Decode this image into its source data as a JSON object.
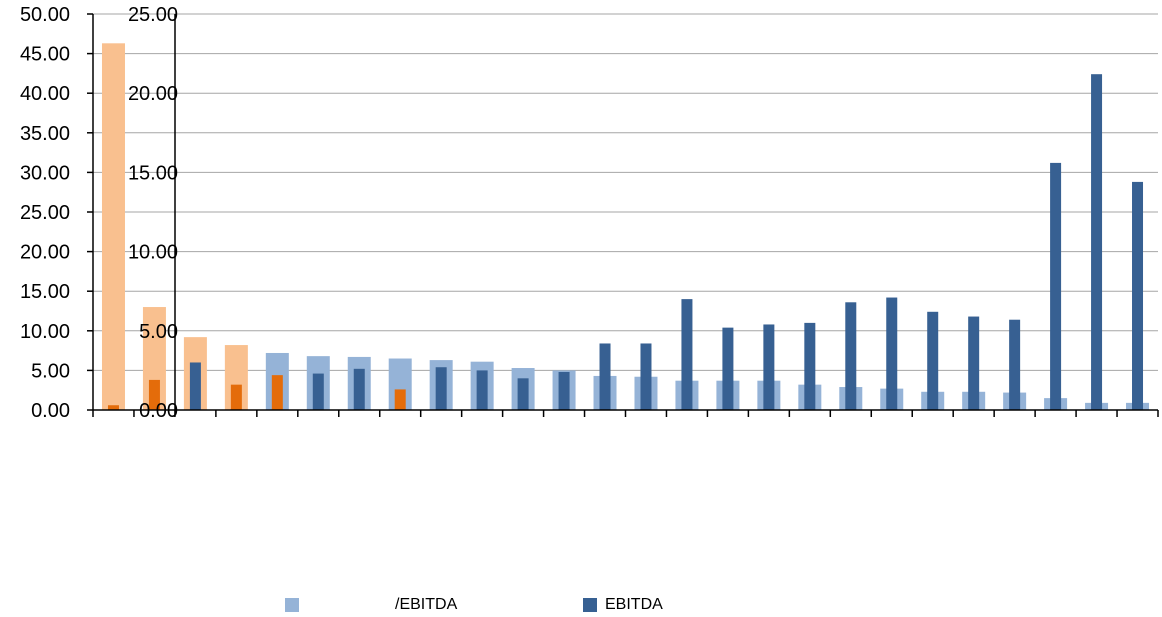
{
  "chart_data": {
    "type": "bar",
    "left_axis": {
      "ylim": [
        0,
        50
      ],
      "ticks": [
        "0.00",
        "5.00",
        "10.00",
        "15.00",
        "20.00",
        "25.00",
        "30.00",
        "35.00",
        "40.00",
        "45.00",
        "50.00"
      ]
    },
    "right_axis": {
      "ylim": [
        0,
        25
      ],
      "ticks": [
        "0.00",
        "5.00",
        "10.00",
        "15.00",
        "20.00",
        "25.00"
      ]
    },
    "categories_count": 26,
    "series": [
      {
        "name": "/EBITDA",
        "axis": "left",
        "values": [
          46.3,
          13.0,
          9.2,
          8.2,
          7.2,
          6.8,
          6.7,
          6.5,
          6.3,
          6.1,
          5.3,
          5.0,
          4.3,
          4.2,
          3.7,
          3.7,
          3.7,
          3.2,
          2.9,
          2.7,
          2.3,
          2.3,
          2.2,
          1.5,
          0.9,
          0.9
        ],
        "colors": [
          "#f9c08f",
          "#f9c08f",
          "#f9c08f",
          "#f9c08f",
          "#95b3d7",
          "#95b3d7",
          "#95b3d7",
          "#95b3d7",
          "#95b3d7",
          "#95b3d7",
          "#95b3d7",
          "#95b3d7",
          "#95b3d7",
          "#95b3d7",
          "#95b3d7",
          "#95b3d7",
          "#95b3d7",
          "#95b3d7",
          "#95b3d7",
          "#95b3d7",
          "#95b3d7",
          "#95b3d7",
          "#95b3d7",
          "#95b3d7",
          "#95b3d7",
          "#95b3d7"
        ]
      },
      {
        "name": "EBITDA",
        "axis": "right",
        "values": [
          0.3,
          1.9,
          3.0,
          1.6,
          2.2,
          2.3,
          2.6,
          1.3,
          2.7,
          2.5,
          2.0,
          2.4,
          4.2,
          4.2,
          7.0,
          5.2,
          5.4,
          5.5,
          6.8,
          7.1,
          6.2,
          5.9,
          5.7,
          15.6,
          21.2,
          14.4
        ],
        "colors": [
          "#e46c0a",
          "#e46c0a",
          "#376092",
          "#e46c0a",
          "#e46c0a",
          "#376092",
          "#376092",
          "#e46c0a",
          "#376092",
          "#376092",
          "#376092",
          "#376092",
          "#376092",
          "#376092",
          "#376092",
          "#376092",
          "#376092",
          "#376092",
          "#376092",
          "#376092",
          "#376092",
          "#376092",
          "#376092",
          "#376092",
          "#376092",
          "#376092"
        ]
      }
    ],
    "legend": [
      "/EBITDA",
      "EBITDA"
    ],
    "legend_position": "bottom",
    "grid": true
  },
  "legend": {
    "items": [
      {
        "label": "/EBITDA",
        "color": "#95b3d7"
      },
      {
        "label": "EBITDA",
        "color": "#376092"
      }
    ]
  }
}
